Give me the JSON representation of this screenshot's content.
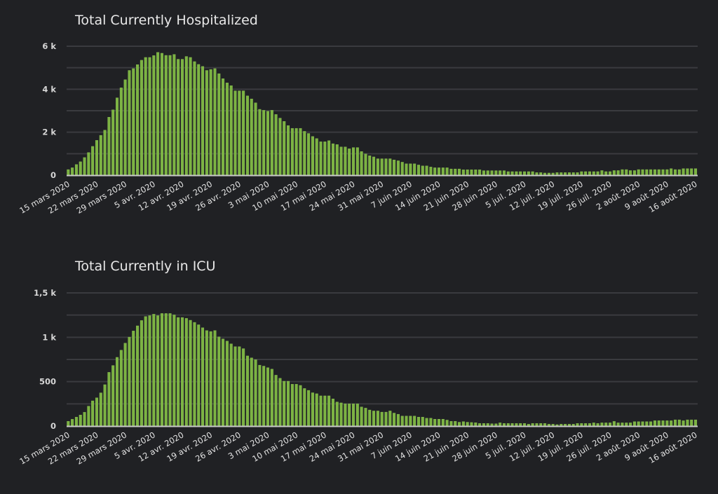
{
  "theme": {
    "background": "#202124",
    "bar_color": "#7cb342",
    "grid_color": "#3a3b3f",
    "axis_color": "#c9c9c9",
    "text_color": "#e4e4e4"
  },
  "chart_data": [
    {
      "type": "bar",
      "title": "Total Currently Hospitalized",
      "xlabel": "",
      "ylabel": "",
      "ylim": [
        0,
        6000
      ],
      "grid": true,
      "grid_step": 1000,
      "legend": "none",
      "y_ticks": [
        {
          "value": 0,
          "label": "0"
        },
        {
          "value": 2000,
          "label": "2 k"
        },
        {
          "value": 4000,
          "label": "4 k"
        },
        {
          "value": 6000,
          "label": "6 k"
        }
      ],
      "x_tick_every": 7,
      "x_tick_labels": [
        "15 mars 2020",
        "22 mars 2020",
        "29 mars 2020",
        "5 avr. 2020",
        "12 avr. 2020",
        "19 avr. 2020",
        "26 avr. 2020",
        "3 mai 2020",
        "10 mai 2020",
        "17 mai 2020",
        "24 mai 2020",
        "31 mai 2020",
        "7 juin 2020",
        "14 juin 2020",
        "21 juin 2020",
        "28 juin 2020",
        "5 juil. 2020",
        "12 juil. 2020",
        "19 juil. 2020",
        "26 juil. 2020",
        "2 août 2020",
        "9 août 2020",
        "16 août 2020"
      ],
      "categories": [
        "2020-03-15",
        "2020-03-16",
        "2020-03-17",
        "2020-03-18",
        "2020-03-19",
        "2020-03-20",
        "2020-03-21",
        "2020-03-22",
        "2020-03-23",
        "2020-03-24",
        "2020-03-25",
        "2020-03-26",
        "2020-03-27",
        "2020-03-28",
        "2020-03-29",
        "2020-03-30",
        "2020-03-31",
        "2020-04-01",
        "2020-04-02",
        "2020-04-03",
        "2020-04-04",
        "2020-04-05",
        "2020-04-06",
        "2020-04-07",
        "2020-04-08",
        "2020-04-09",
        "2020-04-10",
        "2020-04-11",
        "2020-04-12",
        "2020-04-13",
        "2020-04-14",
        "2020-04-15",
        "2020-04-16",
        "2020-04-17",
        "2020-04-18",
        "2020-04-19",
        "2020-04-20",
        "2020-04-21",
        "2020-04-22",
        "2020-04-23",
        "2020-04-24",
        "2020-04-25",
        "2020-04-26",
        "2020-04-27",
        "2020-04-28",
        "2020-04-29",
        "2020-04-30",
        "2020-05-01",
        "2020-05-02",
        "2020-05-03",
        "2020-05-04",
        "2020-05-05",
        "2020-05-06",
        "2020-05-07",
        "2020-05-08",
        "2020-05-09",
        "2020-05-10",
        "2020-05-11",
        "2020-05-12",
        "2020-05-13",
        "2020-05-14",
        "2020-05-15",
        "2020-05-16",
        "2020-05-17",
        "2020-05-18",
        "2020-05-19",
        "2020-05-20",
        "2020-05-21",
        "2020-05-22",
        "2020-05-23",
        "2020-05-24",
        "2020-05-25",
        "2020-05-26",
        "2020-05-27",
        "2020-05-28",
        "2020-05-29",
        "2020-05-30",
        "2020-05-31",
        "2020-06-01",
        "2020-06-02",
        "2020-06-03",
        "2020-06-04",
        "2020-06-05",
        "2020-06-06",
        "2020-06-07",
        "2020-06-08",
        "2020-06-09",
        "2020-06-10",
        "2020-06-11",
        "2020-06-12",
        "2020-06-13",
        "2020-06-14",
        "2020-06-15",
        "2020-06-16",
        "2020-06-17",
        "2020-06-18",
        "2020-06-19",
        "2020-06-20",
        "2020-06-21",
        "2020-06-22",
        "2020-06-23",
        "2020-06-24",
        "2020-06-25",
        "2020-06-26",
        "2020-06-27",
        "2020-06-28",
        "2020-06-29",
        "2020-06-30",
        "2020-07-01",
        "2020-07-02",
        "2020-07-03",
        "2020-07-04",
        "2020-07-05",
        "2020-07-06",
        "2020-07-07",
        "2020-07-08",
        "2020-07-09",
        "2020-07-10",
        "2020-07-11",
        "2020-07-12",
        "2020-07-13",
        "2020-07-14",
        "2020-07-15",
        "2020-07-16",
        "2020-07-17",
        "2020-07-18",
        "2020-07-19",
        "2020-07-20",
        "2020-07-21",
        "2020-07-22",
        "2020-07-23",
        "2020-07-24",
        "2020-07-25",
        "2020-07-26",
        "2020-07-27",
        "2020-07-28",
        "2020-07-29",
        "2020-07-30",
        "2020-07-31",
        "2020-08-01",
        "2020-08-02",
        "2020-08-03",
        "2020-08-04",
        "2020-08-05",
        "2020-08-06",
        "2020-08-07",
        "2020-08-08",
        "2020-08-09",
        "2020-08-10",
        "2020-08-11",
        "2020-08-12",
        "2020-08-13",
        "2020-08-14",
        "2020-08-15",
        "2020-08-16"
      ],
      "values": [
        260,
        345,
        495,
        625,
        820,
        1055,
        1340,
        1620,
        1855,
        2095,
        2700,
        3040,
        3600,
        4065,
        4445,
        4875,
        4960,
        5145,
        5350,
        5480,
        5480,
        5565,
        5715,
        5675,
        5575,
        5575,
        5620,
        5395,
        5395,
        5525,
        5480,
        5285,
        5155,
        5060,
        4875,
        4920,
        4960,
        4725,
        4490,
        4295,
        4165,
        3925,
        3925,
        3925,
        3690,
        3550,
        3365,
        3065,
        3020,
        2975,
        3020,
        2825,
        2655,
        2505,
        2310,
        2180,
        2180,
        2180,
        2040,
        1940,
        1800,
        1705,
        1555,
        1555,
        1605,
        1465,
        1425,
        1315,
        1315,
        1230,
        1285,
        1285,
        1100,
        990,
        905,
        850,
        765,
        765,
        765,
        765,
        710,
        670,
        605,
        530,
        530,
        530,
        475,
        430,
        430,
        380,
        345,
        345,
        345,
        345,
        290,
        290,
        290,
        250,
        255,
        255,
        255,
        255,
        210,
        210,
        210,
        210,
        210,
        210,
        165,
        165,
        165,
        165,
        165,
        165,
        165,
        120,
        120,
        100,
        100,
        100,
        120,
        120,
        120,
        120,
        120,
        120,
        165,
        165,
        165,
        165,
        165,
        215,
        165,
        165,
        215,
        215,
        260,
        260,
        215,
        215,
        260,
        260,
        260,
        260,
        260,
        260,
        260,
        260,
        305,
        260,
        260,
        305,
        305,
        305,
        305
      ]
    },
    {
      "type": "bar",
      "title": "Total Currently in ICU",
      "xlabel": "",
      "ylabel": "",
      "ylim": [
        0,
        1500
      ],
      "grid": true,
      "grid_step": 250,
      "legend": "none",
      "y_ticks": [
        {
          "value": 0,
          "label": "0"
        },
        {
          "value": 500,
          "label": "500"
        },
        {
          "value": 1000,
          "label": "1 k"
        },
        {
          "value": 1500,
          "label": "1,5 k"
        }
      ],
      "x_tick_every": 7,
      "x_tick_labels": [
        "15 mars 2020",
        "22 mars 2020",
        "29 mars 2020",
        "5 avr. 2020",
        "12 avr. 2020",
        "19 avr. 2020",
        "26 avr. 2020",
        "3 mai 2020",
        "10 mai 2020",
        "17 mai 2020",
        "24 mai 2020",
        "31 mai 2020",
        "7 juin 2020",
        "14 juin 2020",
        "21 juin 2020",
        "28 juin 2020",
        "5 juil. 2020",
        "12 juil. 2020",
        "19 juil. 2020",
        "26 juil. 2020",
        "2 août 2020",
        "9 août 2020",
        "16 août 2020"
      ],
      "categories": [
        "2020-03-15",
        "2020-03-16",
        "2020-03-17",
        "2020-03-18",
        "2020-03-19",
        "2020-03-20",
        "2020-03-21",
        "2020-03-22",
        "2020-03-23",
        "2020-03-24",
        "2020-03-25",
        "2020-03-26",
        "2020-03-27",
        "2020-03-28",
        "2020-03-29",
        "2020-03-30",
        "2020-03-31",
        "2020-04-01",
        "2020-04-02",
        "2020-04-03",
        "2020-04-04",
        "2020-04-05",
        "2020-04-06",
        "2020-04-07",
        "2020-04-08",
        "2020-04-09",
        "2020-04-10",
        "2020-04-11",
        "2020-04-12",
        "2020-04-13",
        "2020-04-14",
        "2020-04-15",
        "2020-04-16",
        "2020-04-17",
        "2020-04-18",
        "2020-04-19",
        "2020-04-20",
        "2020-04-21",
        "2020-04-22",
        "2020-04-23",
        "2020-04-24",
        "2020-04-25",
        "2020-04-26",
        "2020-04-27",
        "2020-04-28",
        "2020-04-29",
        "2020-04-30",
        "2020-05-01",
        "2020-05-02",
        "2020-05-03",
        "2020-05-04",
        "2020-05-05",
        "2020-05-06",
        "2020-05-07",
        "2020-05-08",
        "2020-05-09",
        "2020-05-10",
        "2020-05-11",
        "2020-05-12",
        "2020-05-13",
        "2020-05-14",
        "2020-05-15",
        "2020-05-16",
        "2020-05-17",
        "2020-05-18",
        "2020-05-19",
        "2020-05-20",
        "2020-05-21",
        "2020-05-22",
        "2020-05-23",
        "2020-05-24",
        "2020-05-25",
        "2020-05-26",
        "2020-05-27",
        "2020-05-28",
        "2020-05-29",
        "2020-05-30",
        "2020-05-31",
        "2020-06-01",
        "2020-06-02",
        "2020-06-03",
        "2020-06-04",
        "2020-06-05",
        "2020-06-06",
        "2020-06-07",
        "2020-06-08",
        "2020-06-09",
        "2020-06-10",
        "2020-06-11",
        "2020-06-12",
        "2020-06-13",
        "2020-06-14",
        "2020-06-15",
        "2020-06-16",
        "2020-06-17",
        "2020-06-18",
        "2020-06-19",
        "2020-06-20",
        "2020-06-21",
        "2020-06-22",
        "2020-06-23",
        "2020-06-24",
        "2020-06-25",
        "2020-06-26",
        "2020-06-27",
        "2020-06-28",
        "2020-06-29",
        "2020-06-30",
        "2020-07-01",
        "2020-07-02",
        "2020-07-03",
        "2020-07-04",
        "2020-07-05",
        "2020-07-06",
        "2020-07-07",
        "2020-07-08",
        "2020-07-09",
        "2020-07-10",
        "2020-07-11",
        "2020-07-12",
        "2020-07-13",
        "2020-07-14",
        "2020-07-15",
        "2020-07-16",
        "2020-07-17",
        "2020-07-18",
        "2020-07-19",
        "2020-07-20",
        "2020-07-21",
        "2020-07-22",
        "2020-07-23",
        "2020-07-24",
        "2020-07-25",
        "2020-07-26",
        "2020-07-27",
        "2020-07-28",
        "2020-07-29",
        "2020-07-30",
        "2020-07-31",
        "2020-08-01",
        "2020-08-02",
        "2020-08-03",
        "2020-08-04",
        "2020-08-05",
        "2020-08-06",
        "2020-08-07",
        "2020-08-08",
        "2020-08-09",
        "2020-08-10",
        "2020-08-11",
        "2020-08-12",
        "2020-08-13",
        "2020-08-14",
        "2020-08-15",
        "2020-08-16"
      ],
      "values": [
        53,
        76,
        100,
        124,
        155,
        224,
        284,
        318,
        374,
        466,
        605,
        682,
        774,
        855,
        934,
        1002,
        1071,
        1129,
        1189,
        1234,
        1244,
        1260,
        1244,
        1268,
        1268,
        1268,
        1252,
        1223,
        1223,
        1213,
        1192,
        1168,
        1141,
        1107,
        1076,
        1065,
        1076,
        1005,
        981,
        957,
        926,
        894,
        894,
        872,
        790,
        768,
        747,
        686,
        675,
        657,
        641,
        573,
        538,
        505,
        505,
        471,
        471,
        458,
        423,
        402,
        375,
        364,
        340,
        340,
        340,
        306,
        271,
        261,
        250,
        250,
        250,
        250,
        215,
        202,
        181,
        170,
        170,
        157,
        157,
        170,
        146,
        133,
        112,
        112,
        112,
        112,
        101,
        101,
        88,
        88,
        77,
        77,
        77,
        67,
        53,
        53,
        43,
        50,
        43,
        40,
        38,
        29,
        29,
        29,
        26,
        26,
        36,
        29,
        29,
        29,
        29,
        29,
        29,
        21,
        29,
        29,
        29,
        29,
        21,
        21,
        16,
        21,
        21,
        21,
        21,
        29,
        29,
        29,
        29,
        36,
        29,
        36,
        36,
        36,
        52,
        36,
        36,
        36,
        36,
        49,
        49,
        49,
        49,
        49,
        60,
        60,
        60,
        60,
        60,
        70,
        70,
        60,
        70,
        70,
        70
      ]
    }
  ]
}
